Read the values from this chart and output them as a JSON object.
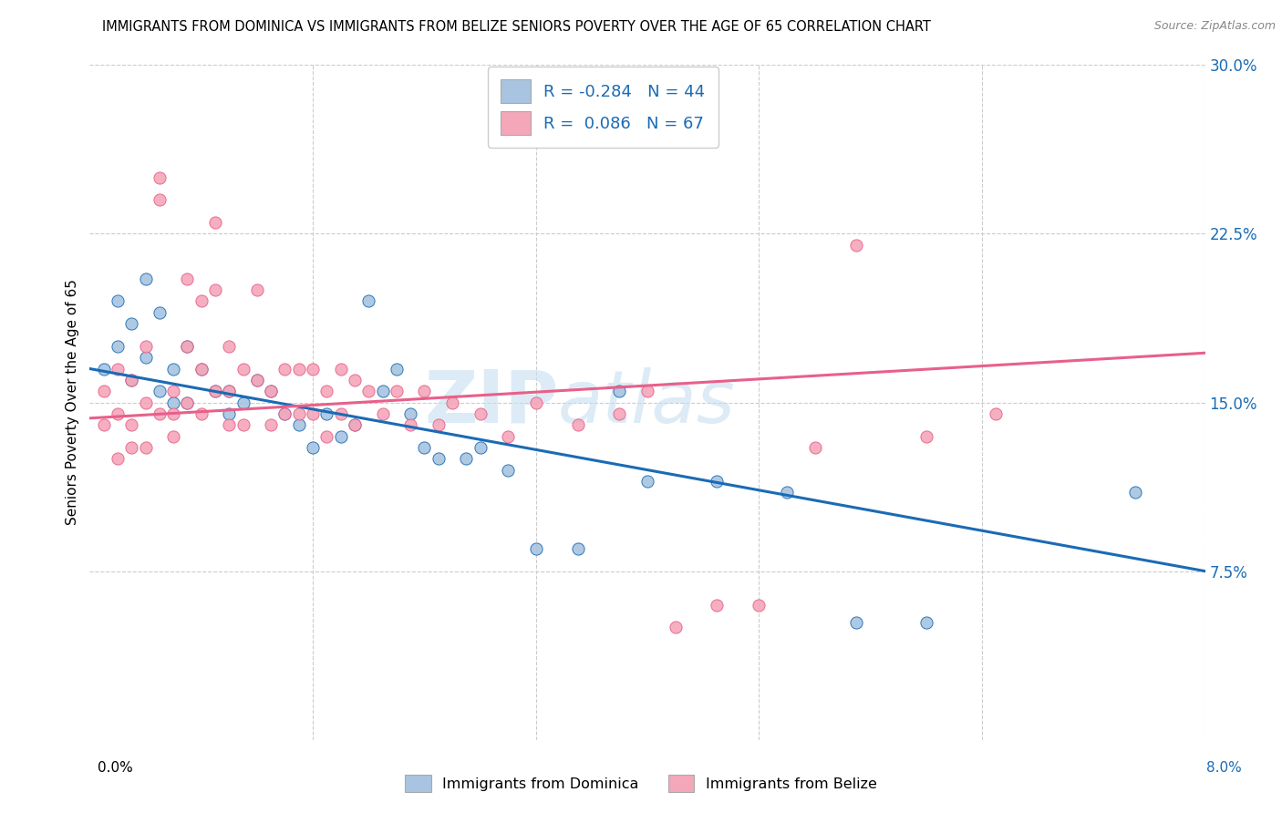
{
  "title": "IMMIGRANTS FROM DOMINICA VS IMMIGRANTS FROM BELIZE SENIORS POVERTY OVER THE AGE OF 65 CORRELATION CHART",
  "source": "Source: ZipAtlas.com",
  "ylabel": "Seniors Poverty Over the Age of 65",
  "xlabel_bottom_left": "0.0%",
  "xlabel_bottom_right": "8.0%",
  "x_min": 0.0,
  "x_max": 0.08,
  "y_min": 0.0,
  "y_max": 0.3,
  "y_ticks": [
    0.075,
    0.15,
    0.225,
    0.3
  ],
  "y_tick_labels": [
    "7.5%",
    "15.0%",
    "22.5%",
    "30.0%"
  ],
  "dominica_color": "#a8c4e0",
  "belize_color": "#f4a7b9",
  "dominica_line_color": "#1a6bb5",
  "belize_line_color": "#e8608a",
  "R_dominica": -0.284,
  "N_dominica": 44,
  "R_belize": 0.086,
  "N_belize": 67,
  "watermark_text": "ZIP",
  "watermark_text2": "atlas",
  "background_color": "#ffffff",
  "dominica_scatter_x": [
    0.001,
    0.002,
    0.002,
    0.003,
    0.003,
    0.004,
    0.004,
    0.005,
    0.005,
    0.006,
    0.006,
    0.007,
    0.007,
    0.008,
    0.009,
    0.01,
    0.01,
    0.011,
    0.012,
    0.013,
    0.014,
    0.015,
    0.016,
    0.017,
    0.018,
    0.019,
    0.02,
    0.021,
    0.022,
    0.023,
    0.024,
    0.025,
    0.027,
    0.028,
    0.03,
    0.032,
    0.035,
    0.038,
    0.04,
    0.045,
    0.05,
    0.055,
    0.06,
    0.075
  ],
  "dominica_scatter_y": [
    0.165,
    0.195,
    0.175,
    0.185,
    0.16,
    0.205,
    0.17,
    0.19,
    0.155,
    0.165,
    0.15,
    0.175,
    0.15,
    0.165,
    0.155,
    0.155,
    0.145,
    0.15,
    0.16,
    0.155,
    0.145,
    0.14,
    0.13,
    0.145,
    0.135,
    0.14,
    0.195,
    0.155,
    0.165,
    0.145,
    0.13,
    0.125,
    0.125,
    0.13,
    0.12,
    0.085,
    0.085,
    0.155,
    0.115,
    0.115,
    0.11,
    0.052,
    0.052,
    0.11
  ],
  "belize_scatter_x": [
    0.001,
    0.001,
    0.002,
    0.002,
    0.002,
    0.003,
    0.003,
    0.003,
    0.004,
    0.004,
    0.004,
    0.005,
    0.005,
    0.005,
    0.006,
    0.006,
    0.006,
    0.007,
    0.007,
    0.007,
    0.008,
    0.008,
    0.008,
    0.009,
    0.009,
    0.009,
    0.01,
    0.01,
    0.01,
    0.011,
    0.011,
    0.012,
    0.012,
    0.013,
    0.013,
    0.014,
    0.014,
    0.015,
    0.015,
    0.016,
    0.016,
    0.017,
    0.017,
    0.018,
    0.018,
    0.019,
    0.019,
    0.02,
    0.021,
    0.022,
    0.023,
    0.024,
    0.025,
    0.026,
    0.028,
    0.03,
    0.032,
    0.035,
    0.038,
    0.04,
    0.042,
    0.045,
    0.048,
    0.052,
    0.055,
    0.06,
    0.065
  ],
  "belize_scatter_y": [
    0.14,
    0.155,
    0.125,
    0.165,
    0.145,
    0.14,
    0.16,
    0.13,
    0.175,
    0.15,
    0.13,
    0.25,
    0.24,
    0.145,
    0.145,
    0.155,
    0.135,
    0.205,
    0.175,
    0.15,
    0.195,
    0.165,
    0.145,
    0.23,
    0.2,
    0.155,
    0.175,
    0.155,
    0.14,
    0.165,
    0.14,
    0.2,
    0.16,
    0.155,
    0.14,
    0.165,
    0.145,
    0.165,
    0.145,
    0.165,
    0.145,
    0.155,
    0.135,
    0.165,
    0.145,
    0.16,
    0.14,
    0.155,
    0.145,
    0.155,
    0.14,
    0.155,
    0.14,
    0.15,
    0.145,
    0.135,
    0.15,
    0.14,
    0.145,
    0.155,
    0.05,
    0.06,
    0.06,
    0.13,
    0.22,
    0.135,
    0.145
  ]
}
